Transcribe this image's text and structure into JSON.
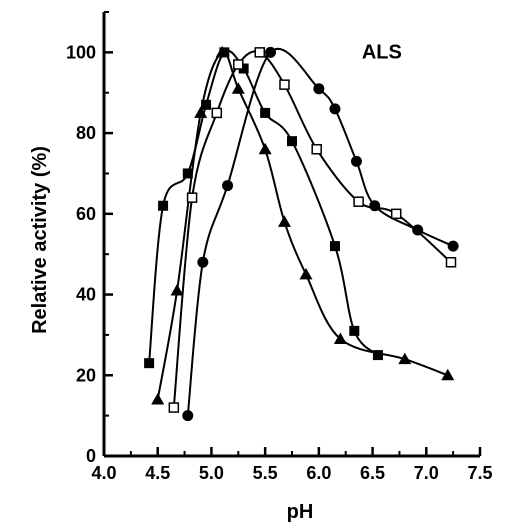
{
  "chart_data": {
    "type": "scatter",
    "title": "",
    "xlabel": "pH",
    "ylabel": "Relative activity (%)",
    "annotation": "ALS",
    "xlim": [
      4.0,
      7.5
    ],
    "ylim": [
      0,
      110
    ],
    "x_ticks": [
      4.0,
      4.5,
      5.0,
      5.5,
      6.0,
      6.5,
      7.0,
      7.5
    ],
    "x_tick_labels": [
      "4.0",
      "4.5",
      "5.0",
      "5.5",
      "6.0",
      "6.5",
      "7.0",
      "7.5"
    ],
    "y_ticks": [
      0,
      20,
      40,
      60,
      80,
      100
    ],
    "y_tick_labels": [
      "0",
      "20",
      "40",
      "60",
      "80",
      "100"
    ],
    "grid": false,
    "legend": "none",
    "series": [
      {
        "marker": "filled-square",
        "points": [
          [
            4.42,
            23
          ],
          [
            4.55,
            62
          ],
          [
            4.78,
            70
          ],
          [
            4.95,
            87
          ],
          [
            5.12,
            100
          ],
          [
            5.3,
            96
          ],
          [
            5.5,
            85
          ],
          [
            5.75,
            78
          ],
          [
            6.15,
            52
          ],
          [
            6.33,
            31
          ],
          [
            6.55,
            25
          ]
        ]
      },
      {
        "marker": "filled-triangle",
        "points": [
          [
            4.5,
            14
          ],
          [
            4.68,
            41
          ],
          [
            4.9,
            85
          ],
          [
            5.1,
            100
          ],
          [
            5.25,
            91
          ],
          [
            5.5,
            76
          ],
          [
            5.68,
            58
          ],
          [
            5.88,
            45
          ],
          [
            6.2,
            29
          ],
          [
            6.8,
            24
          ],
          [
            7.2,
            20
          ]
        ]
      },
      {
        "marker": "open-square",
        "points": [
          [
            4.65,
            12
          ],
          [
            4.82,
            64
          ],
          [
            5.05,
            85
          ],
          [
            5.25,
            97
          ],
          [
            5.45,
            100
          ],
          [
            5.68,
            92
          ],
          [
            5.98,
            76
          ],
          [
            6.37,
            63
          ],
          [
            6.72,
            60
          ],
          [
            7.23,
            48
          ]
        ]
      },
      {
        "marker": "filled-circle",
        "points": [
          [
            4.78,
            10
          ],
          [
            4.92,
            48
          ],
          [
            5.15,
            67
          ],
          [
            5.55,
            100
          ],
          [
            6.0,
            91
          ],
          [
            6.15,
            86
          ],
          [
            6.35,
            73
          ],
          [
            6.52,
            62
          ],
          [
            6.92,
            56
          ],
          [
            7.25,
            52
          ]
        ]
      }
    ]
  }
}
